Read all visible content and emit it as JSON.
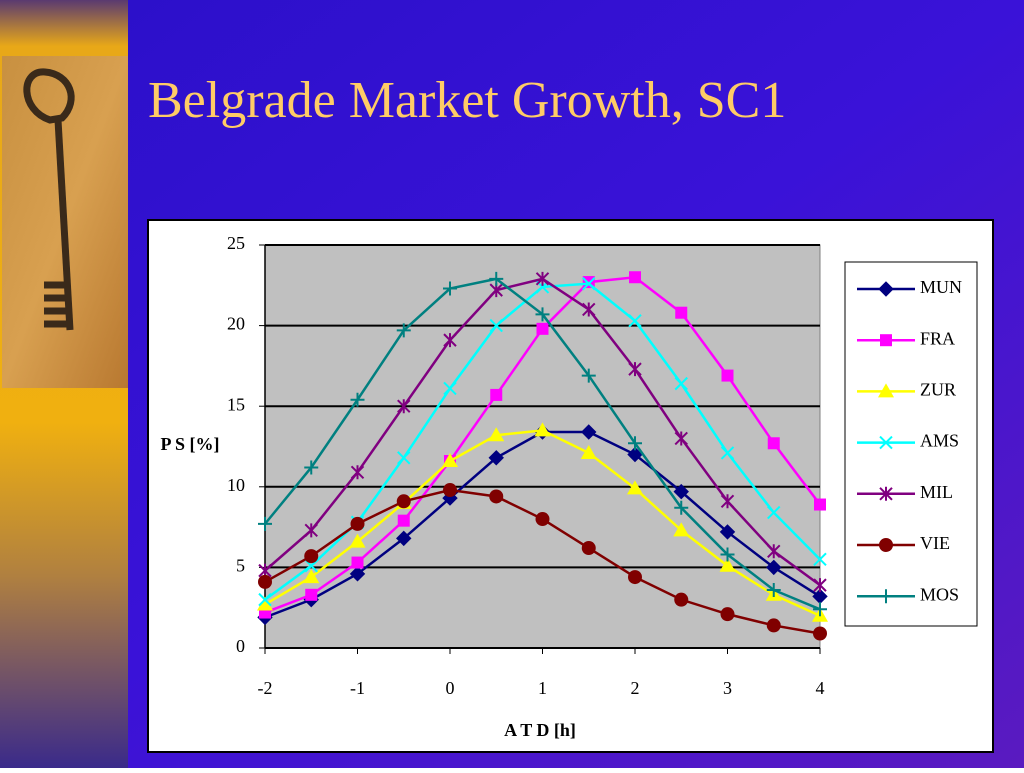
{
  "chart_data": {
    "type": "line",
    "title": "Belgrade Market Growth, SC1",
    "x_label": "A T D [h]",
    "y_label": "P S [%]",
    "x": [
      -2,
      -1.5,
      -1,
      -0.5,
      0,
      0.5,
      1,
      1.5,
      2,
      2.5,
      3,
      3.5,
      4
    ],
    "xlim": [
      -2,
      4
    ],
    "xticks": [
      -2,
      -1,
      0,
      1,
      2,
      3,
      4
    ],
    "ylim": [
      0,
      25
    ],
    "yticks": [
      0,
      5,
      10,
      15,
      20,
      25
    ],
    "grid": true,
    "legend": "right",
    "series": [
      {
        "name": "MUN",
        "color": "#000080",
        "marker": "diamond",
        "values": [
          1.9,
          3.0,
          4.6,
          6.8,
          9.3,
          11.8,
          13.4,
          13.4,
          12.0,
          9.7,
          7.2,
          5.0,
          3.2
        ]
      },
      {
        "name": "FRA",
        "color": "#ff00ff",
        "marker": "square",
        "values": [
          2.2,
          3.3,
          5.3,
          7.9,
          11.6,
          15.7,
          19.8,
          22.7,
          23.0,
          20.8,
          16.9,
          12.7,
          8.9
        ]
      },
      {
        "name": "ZUR",
        "color": "#ffff00",
        "marker": "triangle",
        "values": [
          2.7,
          4.4,
          6.6,
          9.0,
          11.6,
          13.2,
          13.5,
          12.1,
          9.9,
          7.3,
          5.1,
          3.3,
          2.0
        ]
      },
      {
        "name": "AMS",
        "color": "#00ffff",
        "marker": "x",
        "values": [
          3.0,
          5.1,
          7.8,
          11.8,
          16.1,
          20.0,
          22.4,
          22.6,
          20.3,
          16.4,
          12.1,
          8.4,
          5.5
        ]
      },
      {
        "name": "MIL",
        "color": "#800080",
        "marker": "asterisk",
        "values": [
          4.8,
          7.3,
          10.9,
          15.0,
          19.1,
          22.2,
          22.9,
          21.0,
          17.3,
          13.0,
          9.1,
          6.0,
          3.9
        ]
      },
      {
        "name": "VIE",
        "color": "#800000",
        "marker": "circle",
        "values": [
          4.1,
          5.7,
          7.7,
          9.1,
          9.8,
          9.4,
          8.0,
          6.2,
          4.4,
          3.0,
          2.1,
          1.4,
          0.9
        ]
      },
      {
        "name": "MOS",
        "color": "#008080",
        "marker": "plus",
        "values": [
          7.7,
          11.2,
          15.4,
          19.7,
          22.3,
          22.9,
          20.7,
          16.9,
          12.7,
          8.7,
          5.8,
          3.6,
          2.4
        ]
      }
    ]
  }
}
